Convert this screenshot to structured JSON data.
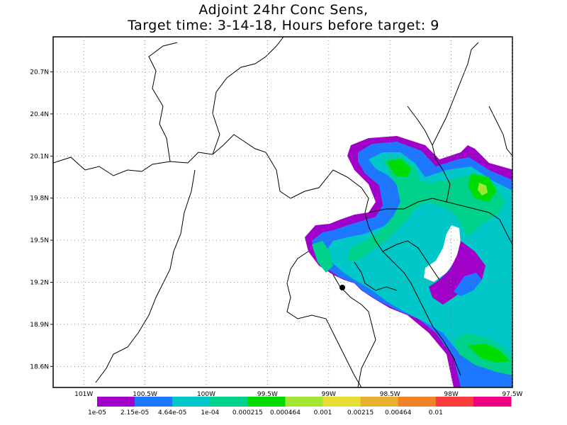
{
  "title": {
    "line1": "Adjoint 24hr Conc Sens,",
    "line2": "Target time: 3-14-18, Hours before target: 9"
  },
  "map": {
    "lat_ticks": [
      "20.7N",
      "20.4N",
      "20.1N",
      "19.8N",
      "19.5N",
      "19.2N",
      "18.9N",
      "18.6N"
    ],
    "lon_ticks": [
      "101W",
      "100.5W",
      "100W",
      "99.5W",
      "99W",
      "98.5W",
      "98W",
      "97.5W"
    ],
    "lat_range": [
      18.45,
      20.95
    ],
    "lon_range": [
      -101.25,
      -97.5
    ]
  },
  "colorbar": {
    "labels": [
      "1e-05",
      "2.15e-05",
      "4.64e-05",
      "1e-04",
      "0.000215",
      "0.000464",
      "0.001",
      "0.00215",
      "0.00464",
      "0.01"
    ],
    "colors": [
      "#a000c8",
      "#1e78ff",
      "#00c8c8",
      "#00d28c",
      "#00dc00",
      "#a0e632",
      "#e6dc32",
      "#e6af2d",
      "#f08228",
      "#fa3c3c",
      "#f00082"
    ]
  }
}
